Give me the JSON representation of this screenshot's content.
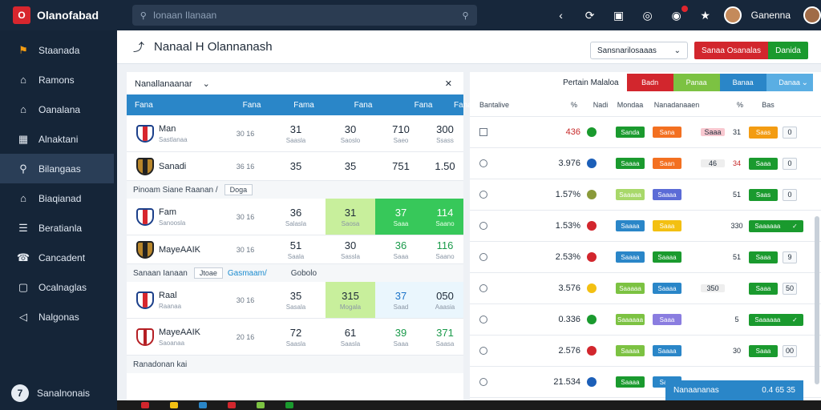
{
  "app": {
    "logo_text": "Olanofabad",
    "logo_mark": "O"
  },
  "search": {
    "placeholder": "Ionaan Ilanaan"
  },
  "user": {
    "name": "Ganenna"
  },
  "sidebar": {
    "items": [
      {
        "label": "Staanada",
        "icon": "football-icon"
      },
      {
        "label": "Ramons",
        "icon": "home-icon"
      },
      {
        "label": "Oanalana",
        "icon": "home-icon"
      },
      {
        "label": "Alnaktani",
        "icon": "calculator-icon"
      },
      {
        "label": "Bilangaas",
        "icon": "search-icon",
        "active": true
      },
      {
        "label": "Biaqianad",
        "icon": "home-icon"
      },
      {
        "label": "Beratianla",
        "icon": "list-icon"
      },
      {
        "label": "Cancadent",
        "icon": "headset-icon"
      },
      {
        "label": "Ocalnaglas",
        "icon": "chat-icon"
      },
      {
        "label": "Nalgonas",
        "icon": "megaphone-icon"
      }
    ],
    "bottom": {
      "label": "Sanalnonais",
      "icon_char": "7"
    }
  },
  "header": {
    "title": "Nanaal H Olannanash",
    "select_value": "Sansnarilosaaas",
    "btn_red": "Sanaa Osanalas",
    "btn_green": "Danida"
  },
  "left": {
    "filter_label": "Nanallanaanar",
    "columns": [
      "Fana",
      "Fana",
      "Fama",
      "Fana",
      "Fana",
      "Fana"
    ],
    "rows": [
      {
        "kind": "match",
        "crest": "blue",
        "name": "Man",
        "sub": "Sastlanaa",
        "count": "30 16",
        "c1": "31",
        "c1s": "Saasla",
        "c2": "30",
        "c2s": "Saoslo",
        "c3": "710",
        "c3s": "Saeo",
        "c4": "300",
        "c4s": "Ssass"
      },
      {
        "kind": "match",
        "crest": "dark",
        "name": "Sanadi",
        "sub": "",
        "count": "36 16",
        "c1": "35",
        "c1s": "",
        "c2": "35",
        "c2s": "",
        "c3": "751",
        "c3s": "",
        "c4": "1.50",
        "c4s": ""
      },
      {
        "kind": "group",
        "label": "Pinoam Siane Raanan /",
        "tag": "Doga",
        "tag2": ""
      },
      {
        "kind": "match",
        "crest": "blue",
        "name": "Fam",
        "sub": "Sanoosla",
        "count": "30 16",
        "c1": "36",
        "c1s": "Salasla",
        "c2": "31",
        "c2s": "Saosa",
        "c3": "37",
        "c3s": "Saaa",
        "c4": "114",
        "c4s": "Saano",
        "hl": [
          "",
          "lime",
          "green",
          "green"
        ]
      },
      {
        "kind": "match",
        "crest": "dark",
        "name": "MayeAAIK",
        "sub": "",
        "count": "30 16",
        "c1": "51",
        "c1s": "Saala",
        "c2": "30",
        "c2s": "Sassla",
        "c3": "36",
        "c3s": "Saaa",
        "c4": "116",
        "c4s": "Saano",
        "colors": [
          "",
          "",
          "green",
          "green"
        ]
      },
      {
        "kind": "group",
        "label": "Sanaan Ianaan",
        "tag": "Jtoae",
        "tag2": "Gasmaam/",
        "tail": "Gobolo"
      },
      {
        "kind": "match",
        "crest": "blue",
        "name": "Raal",
        "sub": "Raanaa",
        "count": "30 16",
        "c1": "35",
        "c1s": "Sasala",
        "c2": "315",
        "c2s": "Mogala",
        "c3": "37",
        "c3s": "Saad",
        "c4": "050",
        "c4s": "Aaasia",
        "hl": [
          "",
          "lime",
          "pale",
          "pale"
        ],
        "colors": [
          "",
          "",
          "blue",
          ""
        ]
      },
      {
        "kind": "match",
        "crest": "red",
        "name": "MayeAAIK",
        "sub": "Saoanaa",
        "count": "20 16",
        "c1": "72",
        "c1s": "Saasla",
        "c2": "61",
        "c2s": "Saasla",
        "c3": "39",
        "c3s": "Saaa",
        "c4": "371",
        "c4s": "Saasa",
        "colors": [
          "",
          "",
          "green",
          "green"
        ]
      },
      {
        "kind": "group",
        "label": "Ranadonan kai",
        "tag": "",
        "tag2": ""
      }
    ]
  },
  "right": {
    "title": "Pertain Malaloa",
    "tabs": [
      {
        "label": "Badn",
        "color": "#d2262d"
      },
      {
        "label": "Panaa",
        "color": "#7cc242"
      },
      {
        "label": "Banaa",
        "color": "#2a86c8"
      },
      {
        "label": "Danaa",
        "color": "#5aaee3"
      }
    ],
    "columns": [
      "Bantalive",
      "%",
      "Nadi",
      "Mondaa",
      "Nanadanaaen",
      "",
      "%",
      "Bas"
    ],
    "rows": [
      {
        "check": "box",
        "pct": "436",
        "pct_red": true,
        "dot": "#1a9a2e",
        "p1": "Sanda",
        "p1c": "#1a9a2e",
        "p2": "Sana",
        "p2c": "#f37021",
        "p3": "Saaa",
        "p3c": "#f8c8d0",
        "v": "31",
        "b1": "Saas",
        "b1c": "orange",
        "b2": "0"
      },
      {
        "check": "radio",
        "pct": "3.976",
        "dot": "#1c5fb8",
        "p1": "Saaaa",
        "p1c": "#1a9a2e",
        "p2": "Saan",
        "p2c": "#f37021",
        "p3": "46",
        "p3c": "#eeeeee",
        "v": "34",
        "vred": true,
        "b1": "Saaa",
        "b1c": "green",
        "b2": "0"
      },
      {
        "check": "radio",
        "pct": "1.57%",
        "dot": "#8a9a3a",
        "p1": "Saaaaa",
        "p1c": "#a8d86a",
        "p2": "Saaaa",
        "p2c": "#5b6bd6",
        "p3": "",
        "p3c": "",
        "v": "51",
        "b1": "Saas",
        "b1c": "green",
        "b2": "0"
      },
      {
        "check": "radio",
        "pct": "1.53%",
        "dot": "#d2262d",
        "p1": "Saaaa",
        "p1c": "#2a86c8",
        "p2": "Saaa",
        "p2c": "#f3c012",
        "p3": "",
        "p3c": "",
        "v": "330",
        "b1": "Saaaaaa",
        "b1c": "green-wide",
        "b2": ""
      },
      {
        "check": "radio",
        "pct": "2.53%",
        "dot": "#d2262d",
        "p1": "Saaaa",
        "p1c": "#2a86c8",
        "p2": "Saaaa",
        "p2c": "#1a9a2e",
        "p3": "",
        "p3c": "",
        "v": "51",
        "b1": "Saaa",
        "b1c": "green",
        "b2": "9"
      },
      {
        "check": "radio",
        "pct": "3.576",
        "dot": "#f3c012",
        "p1": "Saaaaa",
        "p1c": "#7cc242",
        "p2": "Saaaa",
        "p2c": "#2a86c8",
        "p3": "350",
        "p3c": "#eeeeee",
        "v": "",
        "b1": "Saaa",
        "b1c": "green",
        "b2": "50"
      },
      {
        "check": "radio",
        "pct": "0.336",
        "dot": "#1a9a2e",
        "p1": "Saaaaaa",
        "p1c": "#7cc242",
        "p2": "Saaa",
        "p2c": "#8a7de0",
        "p3": "",
        "p3c": "",
        "v": "5",
        "b1": "Saaaaaa",
        "b1c": "green-wide",
        "b2": ""
      },
      {
        "check": "radio",
        "pct": "2.576",
        "dot": "#d2262d",
        "p1": "Saaaa",
        "p1c": "#7cc242",
        "p2": "Saaaa",
        "p2c": "#2a86c8",
        "p3": "",
        "p3c": "",
        "v": "30",
        "b1": "Saaa",
        "b1c": "green",
        "b2": "00"
      },
      {
        "check": "radio",
        "pct": "21.534",
        "dot": "#1c5fb8",
        "p1": "Saaaa",
        "p1c": "#1a9a2e",
        "p2": "Saaa",
        "p2c": "#2a86c8",
        "p3": "",
        "p3c": "",
        "v": "",
        "b1": "",
        "b1c": "",
        "b2": ""
      }
    ],
    "toast": {
      "label": "Nanaananas",
      "value": "0.4 65 35"
    }
  }
}
